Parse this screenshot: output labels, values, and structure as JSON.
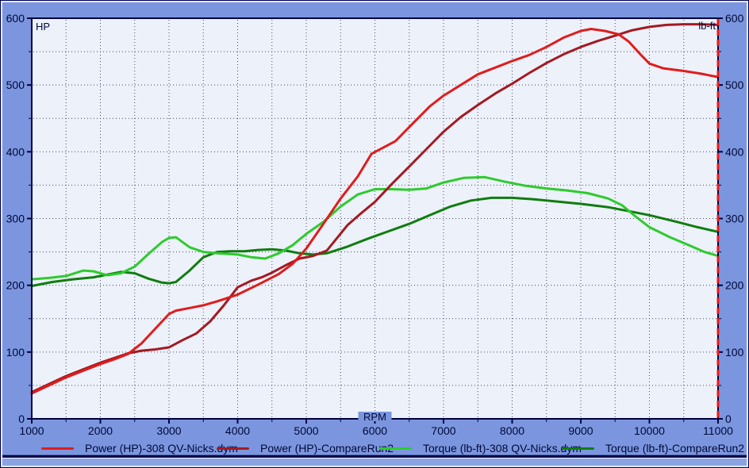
{
  "colors": {
    "window_bg": "#7b96de",
    "plot_bg": "#edf1fa",
    "axis": "#000040",
    "text": "#000838",
    "grid": "#4a4a60",
    "cursor_line": "#ee1616",
    "bottom_strip": "#8ba3e2"
  },
  "chart_data": {
    "type": "line",
    "xlabel": "RPM",
    "ylabel_left": "HP",
    "ylabel_right": "lb-ft",
    "x_range": [
      1000,
      11000
    ],
    "y_range": [
      0,
      600
    ],
    "x_major_ticks": [
      1000,
      2000,
      3000,
      4000,
      5000,
      6000,
      7000,
      8000,
      9000,
      10000,
      11000
    ],
    "x_minor_step": 500,
    "y_major_ticks": [
      0,
      100,
      200,
      300,
      400,
      500,
      600
    ],
    "y_minor_step": 50,
    "grid": "dotted",
    "legend_position": "bottom",
    "cursor": {
      "x": 11000,
      "style": "dashed"
    },
    "series": [
      {
        "name": "Power (HP)-308 QV-Nicks.dym",
        "color": "#e01c1c",
        "points": [
          [
            1000,
            38
          ],
          [
            1250,
            50
          ],
          [
            1500,
            62
          ],
          [
            1750,
            72
          ],
          [
            2000,
            82
          ],
          [
            2200,
            89
          ],
          [
            2400,
            97
          ],
          [
            2600,
            113
          ],
          [
            2800,
            135
          ],
          [
            3000,
            157
          ],
          [
            3100,
            162
          ],
          [
            3300,
            166
          ],
          [
            3500,
            170
          ],
          [
            3700,
            176
          ],
          [
            4000,
            186
          ],
          [
            4300,
            201
          ],
          [
            4600,
            217
          ],
          [
            4800,
            232
          ],
          [
            5000,
            255
          ],
          [
            5250,
            292
          ],
          [
            5500,
            330
          ],
          [
            5750,
            363
          ],
          [
            5950,
            397
          ],
          [
            6100,
            405
          ],
          [
            6300,
            416
          ],
          [
            6500,
            437
          ],
          [
            6800,
            468
          ],
          [
            7000,
            484
          ],
          [
            7250,
            500
          ],
          [
            7500,
            516
          ],
          [
            7750,
            526
          ],
          [
            8000,
            536
          ],
          [
            8250,
            545
          ],
          [
            8500,
            557
          ],
          [
            8750,
            571
          ],
          [
            9000,
            581
          ],
          [
            9150,
            584
          ],
          [
            9350,
            581
          ],
          [
            9550,
            576
          ],
          [
            9700,
            565
          ],
          [
            9850,
            548
          ],
          [
            10000,
            532
          ],
          [
            10200,
            525
          ],
          [
            10500,
            521
          ],
          [
            10750,
            517
          ],
          [
            11000,
            512
          ]
        ]
      },
      {
        "name": "Power (HP)-CompareRun2",
        "color": "#a31a22",
        "points": [
          [
            1000,
            40
          ],
          [
            1250,
            52
          ],
          [
            1500,
            64
          ],
          [
            1750,
            74
          ],
          [
            2000,
            84
          ],
          [
            2200,
            91
          ],
          [
            2400,
            98
          ],
          [
            2600,
            102
          ],
          [
            2800,
            104
          ],
          [
            3000,
            107
          ],
          [
            3200,
            118
          ],
          [
            3400,
            128
          ],
          [
            3600,
            146
          ],
          [
            3800,
            170
          ],
          [
            4000,
            197
          ],
          [
            4200,
            207
          ],
          [
            4350,
            212
          ],
          [
            4500,
            219
          ],
          [
            4700,
            230
          ],
          [
            4900,
            240
          ],
          [
            5100,
            244
          ],
          [
            5300,
            252
          ],
          [
            5600,
            290
          ],
          [
            5800,
            308
          ],
          [
            6000,
            325
          ],
          [
            6250,
            352
          ],
          [
            6500,
            378
          ],
          [
            6750,
            404
          ],
          [
            7000,
            430
          ],
          [
            7250,
            452
          ],
          [
            7500,
            470
          ],
          [
            7750,
            487
          ],
          [
            8000,
            502
          ],
          [
            8250,
            518
          ],
          [
            8500,
            533
          ],
          [
            8750,
            546
          ],
          [
            9000,
            557
          ],
          [
            9250,
            566
          ],
          [
            9500,
            574
          ],
          [
            9750,
            582
          ],
          [
            10000,
            587
          ],
          [
            10250,
            590
          ],
          [
            10500,
            591
          ],
          [
            10750,
            591
          ],
          [
            11000,
            590
          ]
        ]
      },
      {
        "name": "Torque (lb-ft)-308 QV-Nicks.dym",
        "color": "#2dcb2d",
        "points": [
          [
            1000,
            209
          ],
          [
            1250,
            211
          ],
          [
            1500,
            214
          ],
          [
            1750,
            222
          ],
          [
            1900,
            221
          ],
          [
            2100,
            215
          ],
          [
            2300,
            218
          ],
          [
            2500,
            228
          ],
          [
            2700,
            247
          ],
          [
            2900,
            265
          ],
          [
            3000,
            271
          ],
          [
            3100,
            272
          ],
          [
            3300,
            257
          ],
          [
            3500,
            250
          ],
          [
            3700,
            248
          ],
          [
            4000,
            246
          ],
          [
            4200,
            242
          ],
          [
            4400,
            240
          ],
          [
            4600,
            248
          ],
          [
            4800,
            260
          ],
          [
            5000,
            277
          ],
          [
            5250,
            295
          ],
          [
            5500,
            318
          ],
          [
            5750,
            336
          ],
          [
            6000,
            344
          ],
          [
            6250,
            344
          ],
          [
            6500,
            343
          ],
          [
            6750,
            345
          ],
          [
            7000,
            354
          ],
          [
            7300,
            361
          ],
          [
            7600,
            362
          ],
          [
            7900,
            355
          ],
          [
            8200,
            349
          ],
          [
            8500,
            345
          ],
          [
            8800,
            342
          ],
          [
            9100,
            338
          ],
          [
            9400,
            330
          ],
          [
            9600,
            320
          ],
          [
            9800,
            303
          ],
          [
            10000,
            287
          ],
          [
            10300,
            272
          ],
          [
            10600,
            259
          ],
          [
            10800,
            250
          ],
          [
            11000,
            244
          ]
        ]
      },
      {
        "name": "Torque (lb-ft)-CompareRun2",
        "color": "#0f7d0f",
        "points": [
          [
            1000,
            199
          ],
          [
            1300,
            205
          ],
          [
            1600,
            209
          ],
          [
            1900,
            212
          ],
          [
            2100,
            216
          ],
          [
            2300,
            220
          ],
          [
            2500,
            218
          ],
          [
            2700,
            210
          ],
          [
            2900,
            204
          ],
          [
            3000,
            203
          ],
          [
            3100,
            205
          ],
          [
            3300,
            222
          ],
          [
            3500,
            242
          ],
          [
            3700,
            250
          ],
          [
            3900,
            251
          ],
          [
            4100,
            251
          ],
          [
            4300,
            253
          ],
          [
            4500,
            254
          ],
          [
            4700,
            252
          ],
          [
            4900,
            248
          ],
          [
            5100,
            246
          ],
          [
            5300,
            248
          ],
          [
            5600,
            258
          ],
          [
            5900,
            270
          ],
          [
            6200,
            281
          ],
          [
            6500,
            292
          ],
          [
            6800,
            305
          ],
          [
            7100,
            318
          ],
          [
            7400,
            327
          ],
          [
            7700,
            331
          ],
          [
            8000,
            331
          ],
          [
            8300,
            329
          ],
          [
            8600,
            326
          ],
          [
            9000,
            322
          ],
          [
            9400,
            317
          ],
          [
            9700,
            311
          ],
          [
            10000,
            305
          ],
          [
            10400,
            295
          ],
          [
            10700,
            287
          ],
          [
            11000,
            280
          ]
        ]
      }
    ]
  },
  "legend": {
    "items": [
      {
        "label": "Power (HP)-308 QV-Nicks.dym"
      },
      {
        "label": "Power (HP)-CompareRun2"
      },
      {
        "label": "Torque (lb-ft)-308 QV-Nicks.dym"
      },
      {
        "label": "Torque (lb-ft)-CompareRun2"
      }
    ]
  }
}
